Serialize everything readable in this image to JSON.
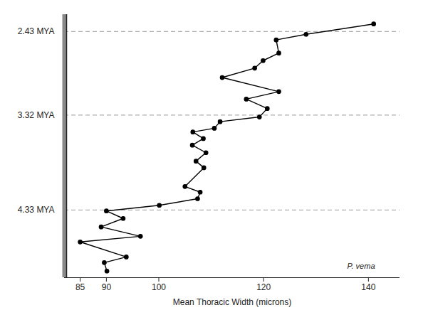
{
  "chart_data": {
    "type": "line",
    "x_label": "Mean Thoracic Width (microns)",
    "x": [
      141.0,
      128.1,
      122.4,
      122.9,
      119.9,
      118.3,
      112.1,
      122.9,
      116.7,
      120.7,
      119.2,
      111.7,
      110.6,
      106.5,
      108.5,
      106.4,
      109.0,
      107.1,
      108.6,
      105.0,
      107.9,
      107.4,
      100.1,
      90.0,
      93.2,
      89.0,
      96.5,
      85.0,
      93.8,
      89.6,
      90.1
    ],
    "y": [
      2.35,
      2.46,
      2.52,
      2.66,
      2.74,
      2.82,
      2.92,
      3.07,
      3.15,
      3.25,
      3.34,
      3.39,
      3.46,
      3.5,
      3.57,
      3.64,
      3.72,
      3.81,
      3.88,
      4.08,
      4.14,
      4.21,
      4.28,
      4.34,
      4.42,
      4.51,
      4.61,
      4.67,
      4.83,
      4.89,
      4.98
    ],
    "color": "#000000",
    "marker": "circle",
    "xlim": [
      82,
      146
    ],
    "xticks": [
      85,
      90,
      100,
      120,
      140
    ],
    "ylim": [
      2.25,
      5.05
    ],
    "yticks": [
      {
        "value": 2.43,
        "label": "2.43 MYA"
      },
      {
        "value": 3.32,
        "label": "3.32 MYA"
      },
      {
        "value": 4.33,
        "label": "4.33 MYA"
      }
    ],
    "grid": true,
    "annotations": [
      {
        "text": "P. vema",
        "x": 138.6,
        "y": 4.93
      }
    ]
  }
}
